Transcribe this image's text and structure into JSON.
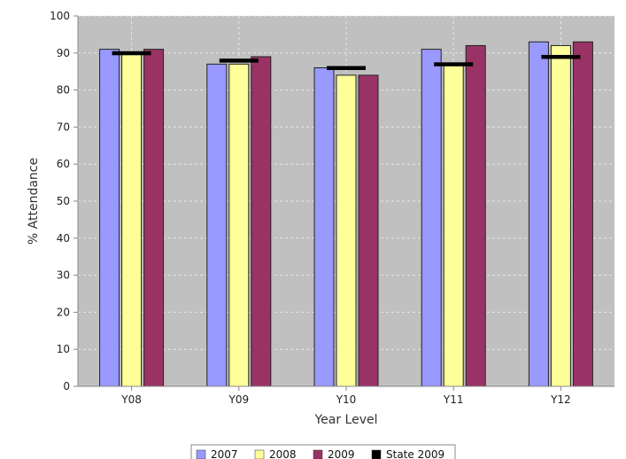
{
  "chart_data": {
    "type": "bar",
    "title": "",
    "xlabel": "Year Level",
    "ylabel": "% Attendance",
    "categories": [
      "Y08",
      "Y09",
      "Y10",
      "Y11",
      "Y12"
    ],
    "ylim": [
      0,
      100
    ],
    "yticks": [
      0,
      10,
      20,
      30,
      40,
      50,
      60,
      70,
      80,
      90,
      100
    ],
    "grid": true,
    "legend_position": "bottom",
    "series": [
      {
        "name": "2007",
        "color": "#9999ff",
        "values": [
          91,
          87,
          86,
          91,
          93
        ]
      },
      {
        "name": "2008",
        "color": "#ffff99",
        "values": [
          90,
          87,
          84,
          87,
          92
        ]
      },
      {
        "name": "2009",
        "color": "#993366",
        "values": [
          91,
          89,
          84,
          92,
          93
        ]
      }
    ],
    "markers": {
      "name": "State 2009",
      "color": "#000000",
      "values": [
        90,
        88,
        86,
        87,
        89
      ]
    },
    "plot_background": "#c0c0c0"
  }
}
